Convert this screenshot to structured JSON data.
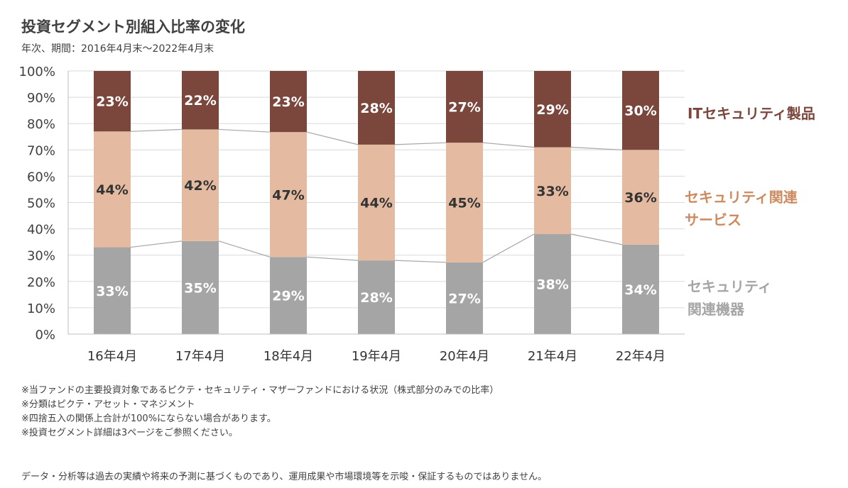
{
  "chart_data": {
    "type": "bar",
    "stacked": true,
    "title": "投資セグメント別組入比率の変化",
    "subtitle": "年次、期間：2016年4月末～2022年4月末",
    "categories": [
      "16年4月",
      "17年4月",
      "18年4月",
      "19年4月",
      "20年4月",
      "21年4月",
      "22年4月"
    ],
    "series": [
      {
        "name": "セキュリティ関連機器",
        "name_lines": [
          "セキュリティ",
          "関連機器"
        ],
        "values": [
          33,
          35,
          29,
          28,
          27,
          38,
          34
        ],
        "labels": [
          "33%",
          "35%",
          "29%",
          "28%",
          "27%",
          "38%",
          "34%"
        ],
        "color": "#a5a5a5",
        "label_color": "#ffffff",
        "legend_color": "#a5a5a5"
      },
      {
        "name": "セキュリティ関連サービス",
        "name_lines": [
          "セキュリティ関連",
          "サービス"
        ],
        "values": [
          44,
          42,
          47,
          44,
          45,
          33,
          36
        ],
        "labels": [
          "44%",
          "42%",
          "47%",
          "44%",
          "45%",
          "33%",
          "36%"
        ],
        "color": "#e4bba1",
        "label_color": "#333333",
        "legend_color": "#cd8a5e"
      },
      {
        "name": "ITセキュリティ製品",
        "name_lines": [
          "ITセキュリティ製品"
        ],
        "values": [
          23,
          22,
          23,
          28,
          27,
          29,
          30
        ],
        "labels": [
          "23%",
          "22%",
          "23%",
          "28%",
          "27%",
          "29%",
          "30%"
        ],
        "color": "#7b463c",
        "label_color": "#ffffff",
        "legend_color": "#7b463c"
      }
    ],
    "yticks": [
      "0%",
      "10%",
      "20%",
      "30%",
      "40%",
      "50%",
      "60%",
      "70%",
      "80%",
      "90%",
      "100%"
    ],
    "ylim": [
      0,
      100
    ],
    "grid": true,
    "connector_lines": true,
    "legend_position": "right"
  },
  "footnotes": [
    "※当ファンドの主要投資対象であるピクテ・セキュリティ・マザーファンドにおける状況（株式部分のみでの比率）",
    "※分類はピクテ・アセット・マネジメント",
    "※四捨五入の関係上合計が100%にならない場合があります。",
    "※投資セグメント詳細は3ページをご参照ください。"
  ],
  "disclaimer": "データ・分析等は過去の実績や将来の予測に基づくものであり、運用成果や市場環境等を示唆・保証するものではありません。"
}
